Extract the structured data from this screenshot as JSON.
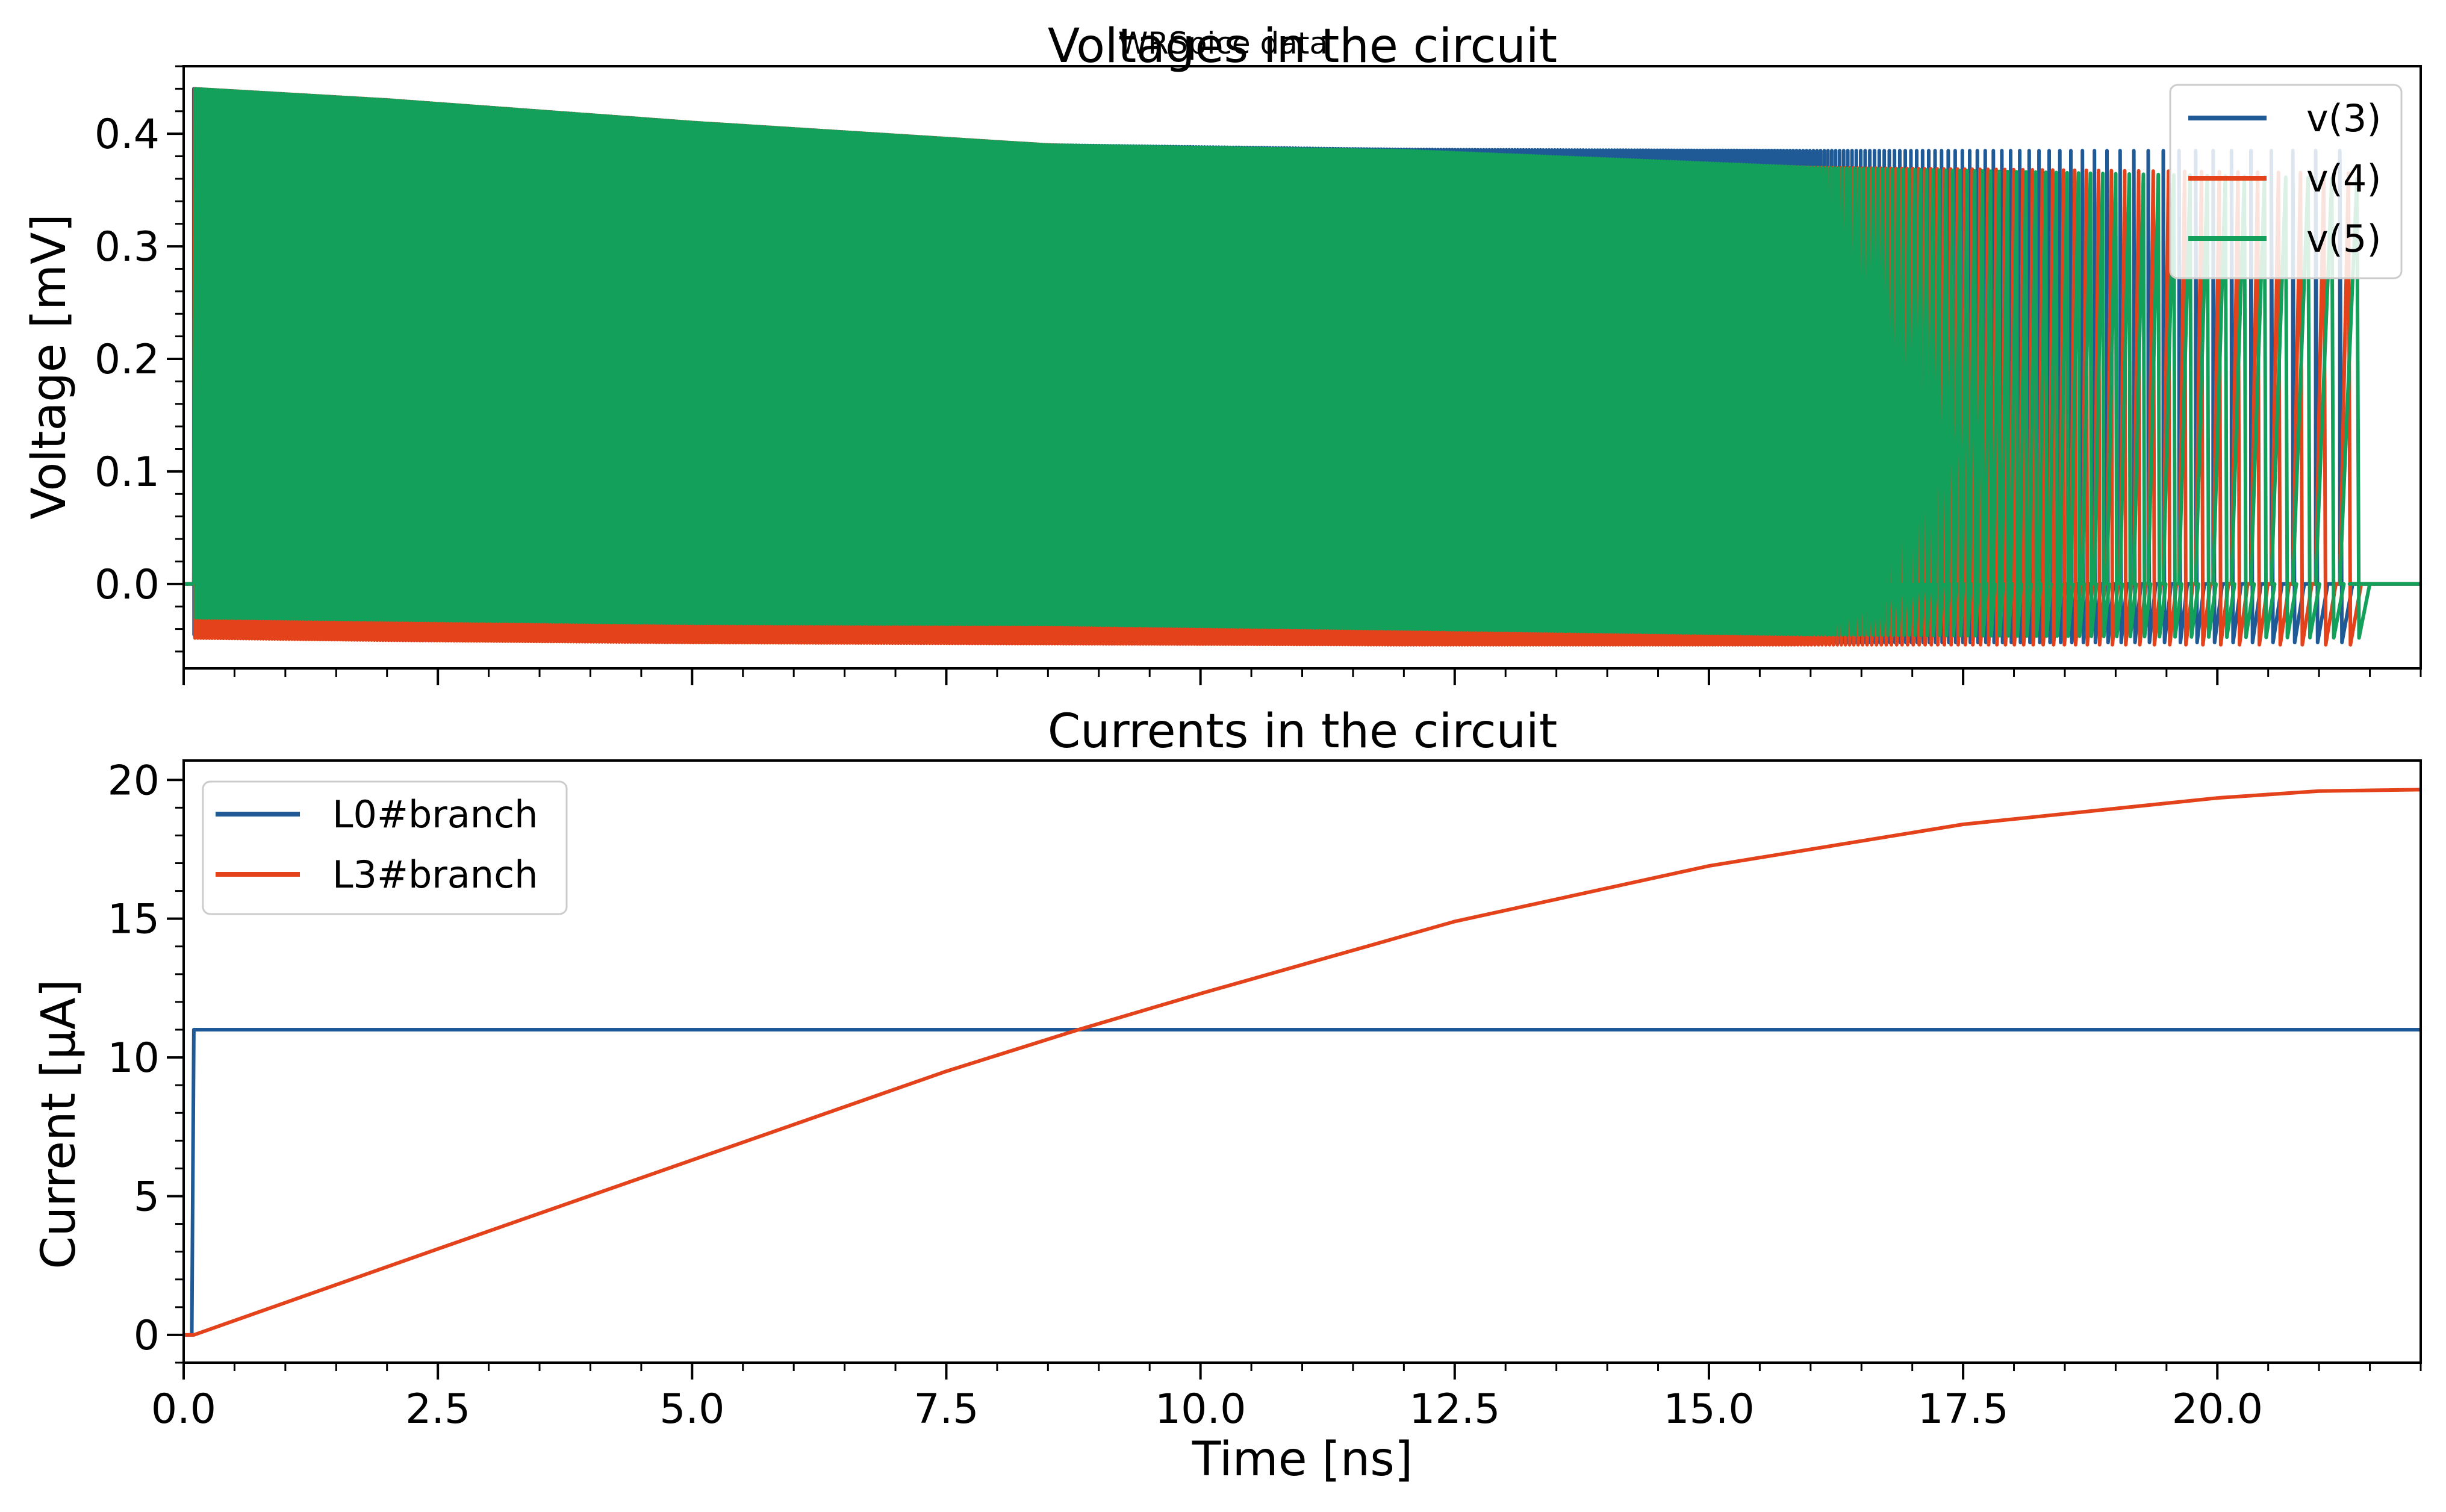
{
  "suptitle": "WRSpice data",
  "colors": {
    "blue": "#1f5a96",
    "orange": "#e3421b",
    "green": "#12a05a"
  },
  "chart_data": [
    {
      "type": "line",
      "title": "Voltages in the circuit",
      "xlabel": "",
      "ylabel": "Voltage [mV]",
      "xlim": [
        0,
        22.0
      ],
      "ylim": [
        -0.075,
        0.46
      ],
      "yticks": [
        {
          "value": 0.0,
          "label": "0.0"
        },
        {
          "value": 0.1,
          "label": "0.1"
        },
        {
          "value": 0.2,
          "label": "0.2"
        },
        {
          "value": 0.3,
          "label": "0.3"
        },
        {
          "value": 0.4,
          "label": "0.4"
        }
      ],
      "legend_position": "top-right",
      "grid": false,
      "series": [
        {
          "name": "v(3)",
          "color": "#1f5a96",
          "kind": "oscillation",
          "start": 0.1,
          "end": 21.3,
          "envelope_x": [
            0.1,
            2.0,
            5.0,
            8.5,
            12.0,
            16.0,
            21.3
          ],
          "upper": [
            0.44,
            0.43,
            0.41,
            0.39,
            0.386,
            0.385,
            0.385
          ],
          "lower": [
            -0.045,
            -0.046,
            -0.048,
            -0.05,
            -0.051,
            -0.052,
            -0.052
          ]
        },
        {
          "name": "v(4)",
          "color": "#e3421b",
          "kind": "oscillation",
          "start": 0.1,
          "end": 21.3,
          "envelope_x": [
            0.1,
            2.0,
            5.0,
            8.5,
            12.0,
            16.0,
            21.3
          ],
          "upper": [
            0.44,
            0.43,
            0.41,
            0.39,
            0.38,
            0.37,
            0.365
          ],
          "lower": [
            -0.048,
            -0.05,
            -0.052,
            -0.053,
            -0.054,
            -0.054,
            -0.054
          ]
        },
        {
          "name": "v(5)",
          "color": "#12a05a",
          "kind": "oscillation",
          "start": 0.1,
          "end": 21.3,
          "envelope_x": [
            0.1,
            2.0,
            5.0,
            8.5,
            12.0,
            16.0,
            21.3
          ],
          "upper": [
            0.44,
            0.43,
            0.41,
            0.39,
            0.385,
            0.37,
            0.36
          ],
          "lower": [
            -0.03,
            -0.032,
            -0.035,
            -0.036,
            -0.04,
            -0.045,
            -0.048
          ]
        }
      ]
    },
    {
      "type": "line",
      "title": "Currents in the circuit",
      "xlabel": "Time [ns]",
      "ylabel": "Current [μA]",
      "xlim": [
        0,
        22.0
      ],
      "ylim": [
        -1.0,
        20.7
      ],
      "yticks": [
        {
          "value": 0,
          "label": "0"
        },
        {
          "value": 5,
          "label": "5"
        },
        {
          "value": 10,
          "label": "10"
        },
        {
          "value": 15,
          "label": "15"
        },
        {
          "value": 20,
          "label": "20"
        }
      ],
      "xticks": [
        {
          "value": 0.0,
          "label": "0.0"
        },
        {
          "value": 2.5,
          "label": "2.5"
        },
        {
          "value": 5.0,
          "label": "5.0"
        },
        {
          "value": 7.5,
          "label": "7.5"
        },
        {
          "value": 10.0,
          "label": "10.0"
        },
        {
          "value": 12.5,
          "label": "12.5"
        },
        {
          "value": 15.0,
          "label": "15.0"
        },
        {
          "value": 17.5,
          "label": "17.5"
        },
        {
          "value": 20.0,
          "label": "20.0"
        }
      ],
      "legend_position": "top-left",
      "grid": false,
      "series": [
        {
          "name": "L0#branch",
          "color": "#1f5a96",
          "x": [
            0.0,
            0.08,
            0.1,
            22.0
          ],
          "y": [
            0.0,
            0.0,
            11.0,
            11.0
          ]
        },
        {
          "name": "L3#branch",
          "color": "#e3421b",
          "x": [
            0.0,
            0.1,
            2.5,
            5.0,
            7.5,
            8.8,
            10.0,
            12.5,
            15.0,
            17.5,
            20.0,
            21.0,
            22.0
          ],
          "y": [
            0.0,
            0.0,
            3.1,
            6.3,
            9.5,
            11.0,
            12.3,
            14.9,
            16.9,
            18.4,
            19.35,
            19.6,
            19.65
          ]
        }
      ]
    }
  ]
}
